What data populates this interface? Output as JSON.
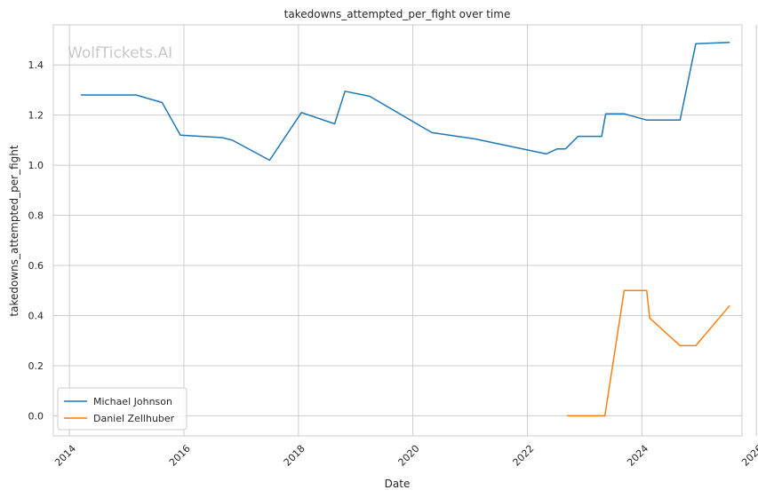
{
  "chart_data": {
    "type": "line",
    "title": "takedowns_attempted_per_fight over time",
    "xlabel": "Date",
    "ylabel": "takedowns_attempted_per_fight",
    "watermark": "WolfTickets.AI",
    "xlim": [
      "2013-09-20",
      "2025-10-01"
    ],
    "ylim": [
      -0.08,
      1.56
    ],
    "x_ticks": [
      "2014",
      "2016",
      "2018",
      "2020",
      "2022",
      "2024",
      "2026"
    ],
    "y_ticks": [
      "0.0",
      "0.2",
      "0.4",
      "0.6",
      "0.8",
      "1.0",
      "1.2",
      "1.4"
    ],
    "grid": true,
    "legend_position": "lower-left",
    "series": [
      {
        "name": "Michael Johnson",
        "color": "#1f77b4",
        "points": [
          [
            "2014-03-15",
            1.28
          ],
          [
            "2015-03-01",
            1.28
          ],
          [
            "2015-08-15",
            1.25
          ],
          [
            "2015-12-10",
            1.12
          ],
          [
            "2016-09-01",
            1.11
          ],
          [
            "2016-11-05",
            1.1
          ],
          [
            "2017-07-01",
            1.02
          ],
          [
            "2018-01-20",
            1.21
          ],
          [
            "2018-08-20",
            1.165
          ],
          [
            "2018-10-25",
            1.295
          ],
          [
            "2019-04-01",
            1.275
          ],
          [
            "2020-05-01",
            1.13
          ],
          [
            "2021-02-01",
            1.105
          ],
          [
            "2022-05-01",
            1.045
          ],
          [
            "2022-07-10",
            1.065
          ],
          [
            "2022-09-01",
            1.065
          ],
          [
            "2022-11-20",
            1.115
          ],
          [
            "2023-04-20",
            1.115
          ],
          [
            "2023-05-15",
            1.205
          ],
          [
            "2023-09-10",
            1.205
          ],
          [
            "2024-02-01",
            1.18
          ],
          [
            "2024-09-01",
            1.18
          ],
          [
            "2024-12-10",
            1.485
          ],
          [
            "2025-07-15",
            1.49
          ]
        ]
      },
      {
        "name": "Daniel Zellhuber",
        "color": "#ff7f0e",
        "points": [
          [
            "2022-09-10",
            0.0
          ],
          [
            "2023-05-10",
            0.0
          ],
          [
            "2023-09-10",
            0.5
          ],
          [
            "2024-02-01",
            0.5
          ],
          [
            "2024-02-20",
            0.39
          ],
          [
            "2024-09-01",
            0.28
          ],
          [
            "2024-12-10",
            0.28
          ],
          [
            "2025-07-15",
            0.44
          ]
        ]
      }
    ]
  }
}
